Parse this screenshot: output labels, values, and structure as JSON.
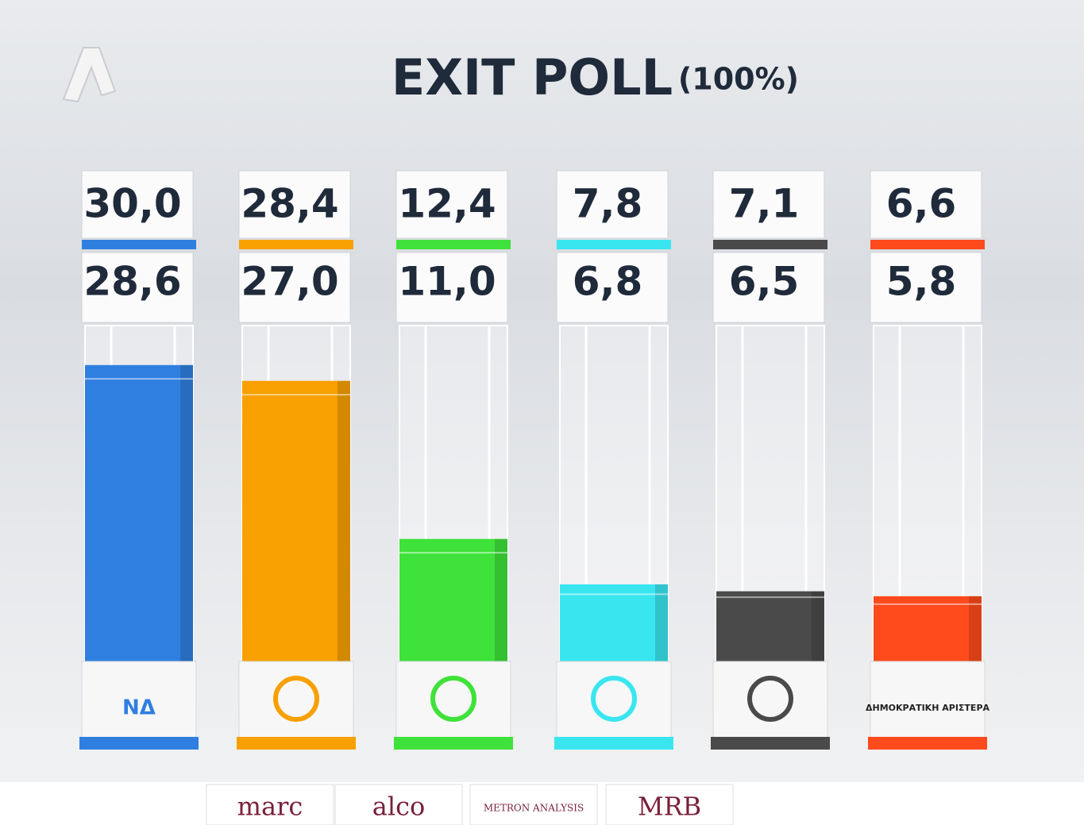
{
  "chart_data": {
    "type": "bar",
    "title": "EXIT POLL",
    "subtitle": "(100%)",
    "categories": [
      "ΝΔ",
      null,
      null,
      null,
      null,
      "ΔΗΜΟΚΡΑΤΙΚΗ ΑΡΙΣΤΕΡΑ"
    ],
    "colors": [
      "#2f7fe0",
      "#f7a000",
      "#3fe23a",
      "#39e6f0",
      "#4a4a4a",
      "#ff4a1c"
    ],
    "series": [
      {
        "values": [
          30.0,
          28.4,
          12.4,
          7.8,
          7.1,
          6.6
        ],
        "value_labels": [
          "30,0",
          "28,4",
          "12,4",
          "7,8",
          "7,1",
          "6,6"
        ]
      },
      {
        "values": [
          28.6,
          27.0,
          11.0,
          6.8,
          6.5,
          5.8
        ],
        "value_labels": [
          "28,6",
          "27,0",
          "11,0",
          "6,8",
          "6,5",
          "5,8"
        ]
      }
    ],
    "ylim": [
      0,
      34
    ],
    "pollsters": [
      "marc",
      "alco",
      "METRON ANALYSIS",
      "MRB"
    ]
  }
}
